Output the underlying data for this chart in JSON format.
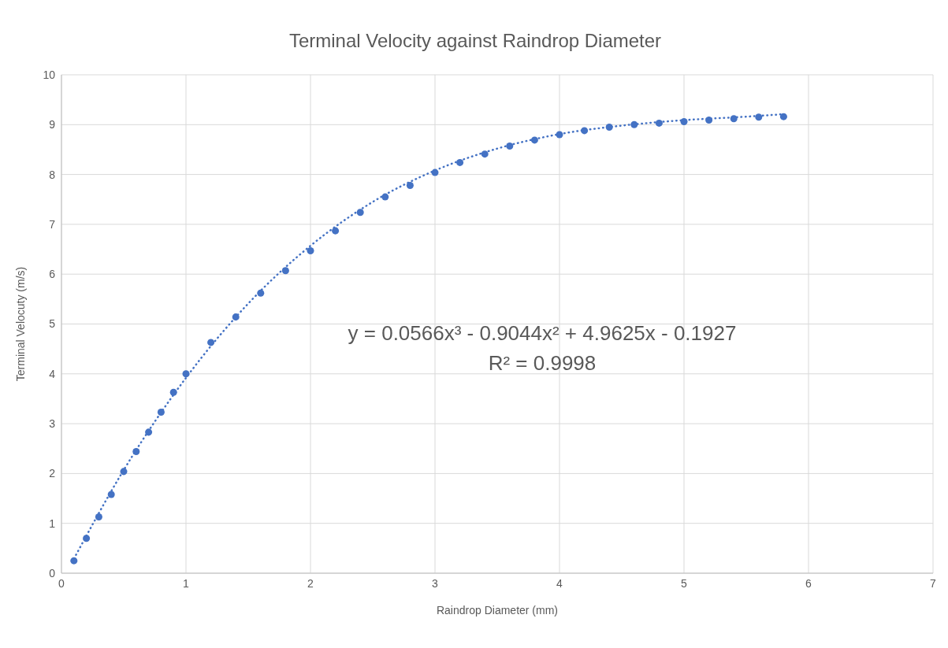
{
  "chart_data": {
    "type": "scatter",
    "title": "Terminal Velocity against Raindrop Diameter",
    "xlabel": "Raindrop Diameter (mm)",
    "ylabel": "Terminal Velocuty (m/s)",
    "annotations": [
      "y = 0.0566x³ - 0.9044x² + 4.9625x - 0.1927",
      "R² = 0.9998"
    ],
    "xlim": [
      0,
      7
    ],
    "xticks": [
      0,
      1,
      2,
      3,
      4,
      5,
      6,
      7
    ],
    "ylim": [
      0,
      10
    ],
    "yticks": [
      0,
      1,
      2,
      3,
      4,
      5,
      6,
      7,
      8,
      9,
      10
    ],
    "grid": true,
    "series": [
      {
        "color": "#4472c4",
        "marker": "circle",
        "x": [
          0.1,
          0.2,
          0.3,
          0.4,
          0.5,
          0.6,
          0.7,
          0.8,
          0.9,
          1.0,
          1.2,
          1.4,
          1.6,
          1.8,
          2.0,
          2.2,
          2.4,
          2.6,
          2.8,
          3.0,
          3.2,
          3.4,
          3.6,
          3.8,
          4.0,
          4.2,
          4.4,
          4.6,
          4.8,
          5.0,
          5.2,
          5.4,
          5.6,
          5.8
        ],
        "values": [
          0.25,
          0.7,
          1.13,
          1.58,
          2.04,
          2.44,
          2.83,
          3.23,
          3.63,
          4.0,
          4.63,
          5.14,
          5.62,
          6.07,
          6.47,
          6.87,
          7.24,
          7.55,
          7.78,
          8.04,
          8.24,
          8.41,
          8.57,
          8.69,
          8.8,
          8.88,
          8.95,
          9.0,
          9.03,
          9.06,
          9.09,
          9.12,
          9.15,
          9.16
        ]
      },
      {
        "type": "line",
        "color": "#4472c4",
        "line_style": "dotted",
        "marker": "none",
        "x": [
          0.1,
          0.5,
          1.0,
          1.5,
          2.0,
          2.5,
          3.0,
          3.5,
          4.0,
          4.5,
          5.0,
          5.5,
          5.8
        ],
        "values": [
          0.29,
          2.07,
          3.92,
          5.41,
          6.57,
          7.45,
          8.08,
          8.52,
          8.81,
          8.98,
          9.09,
          9.16,
          9.21
        ]
      }
    ]
  }
}
